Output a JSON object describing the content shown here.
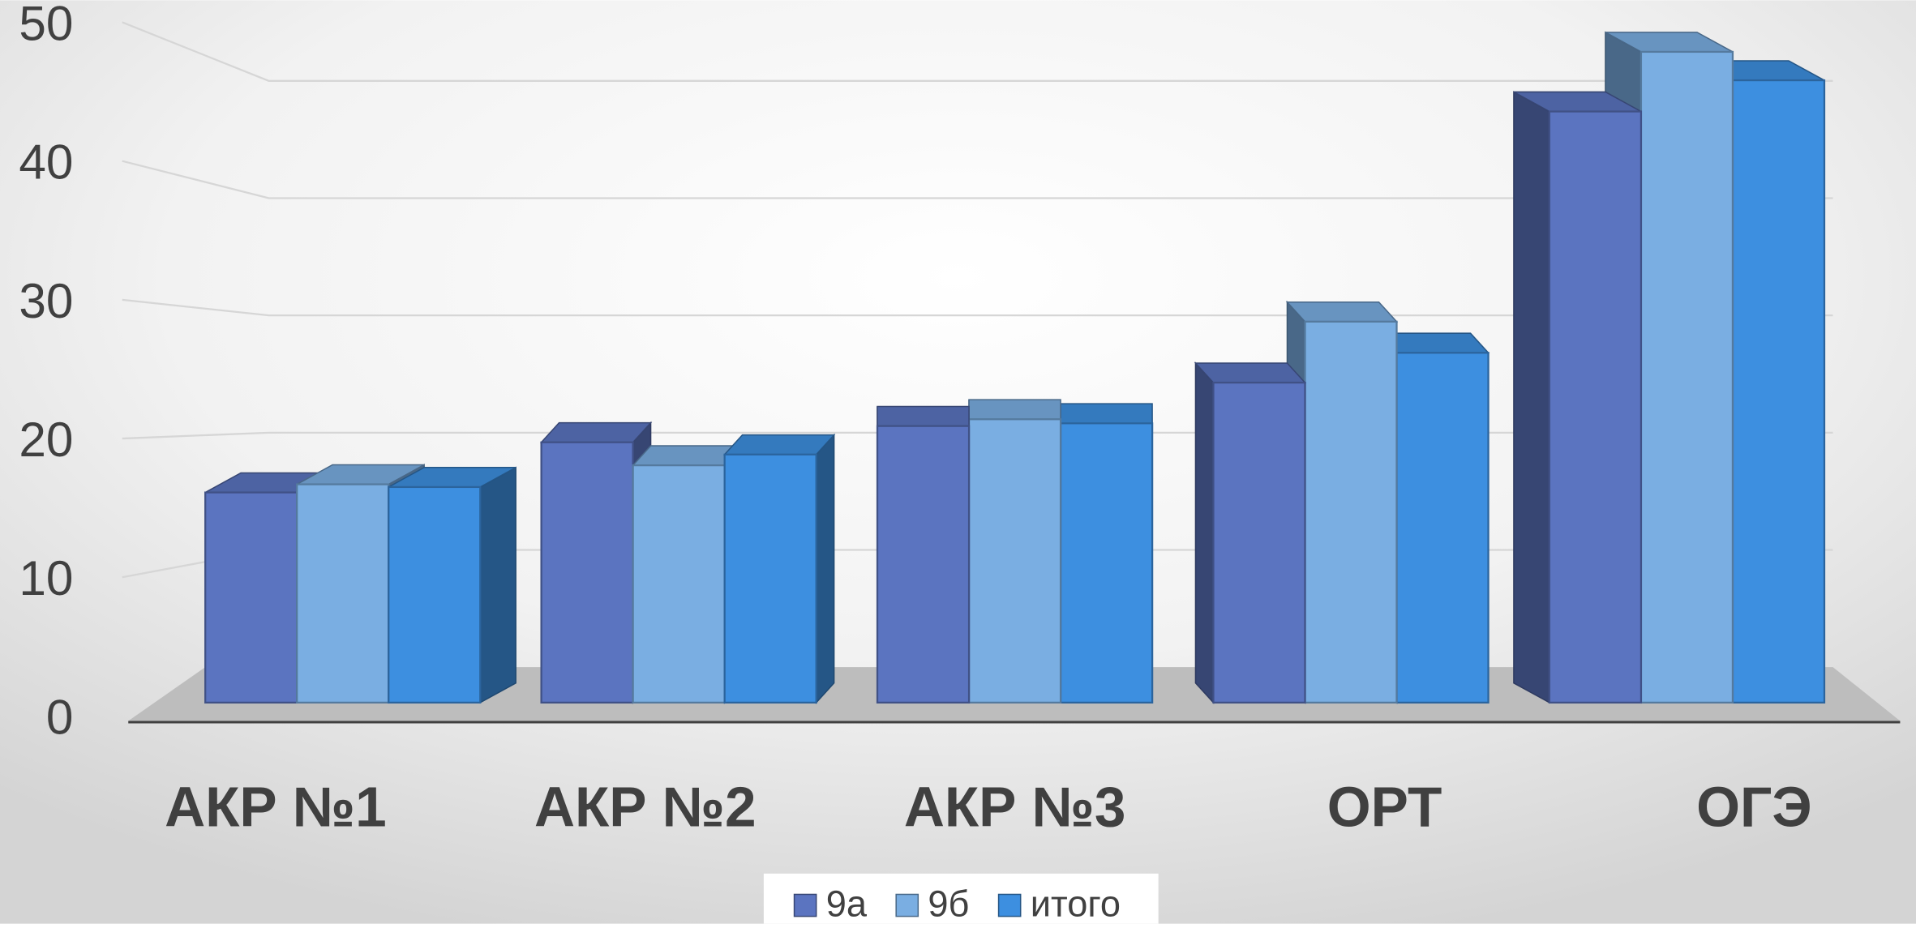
{
  "chart_data": {
    "type": "bar3d",
    "categories": [
      "АКР №1",
      "АКР №2",
      "АКР №3",
      "ОРТ",
      "ОГЭ"
    ],
    "series": [
      {
        "name": "9а",
        "color": "#5b74c0",
        "values": [
          15.5,
          19.2,
          20.4,
          23.6,
          43.6
        ]
      },
      {
        "name": "9б",
        "color": "#7aaee2",
        "values": [
          16.1,
          17.5,
          20.9,
          28.1,
          48
        ]
      },
      {
        "name": "итого",
        "color": "#3d8fe0",
        "values": [
          15.9,
          18.3,
          20.6,
          25.8,
          45.9
        ]
      }
    ],
    "ylim": [
      0,
      50
    ],
    "yticks": [
      0,
      10,
      20,
      30,
      40,
      50
    ],
    "grid": true,
    "legend": "bottom"
  }
}
